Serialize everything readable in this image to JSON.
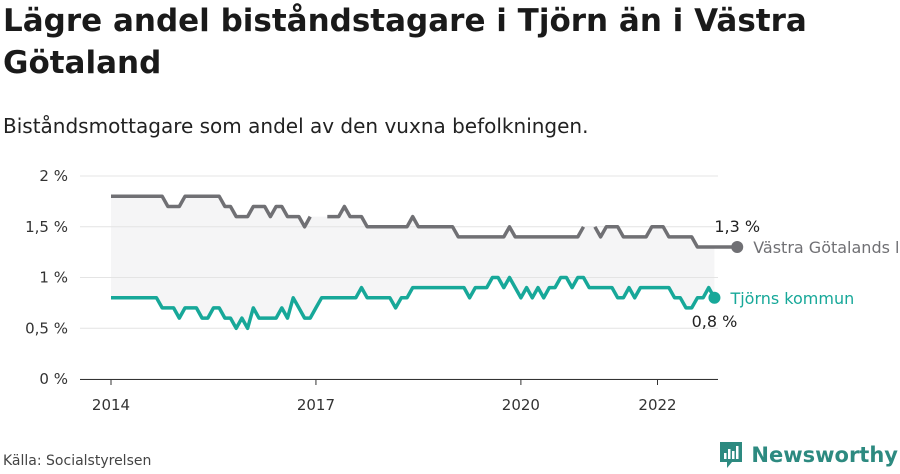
{
  "title": "Lägre andel biståndstagare i Tjörn än i Västra Götaland",
  "subtitle": "Biståndsmottagare som andel av den vuxna befolkningen.",
  "source": "Källa: Socialstyrelsen",
  "brand": "Newsworthy",
  "colors": {
    "vgr": "#707074",
    "tjorn": "#17a899",
    "band": "#f5f5f6"
  },
  "chart_data": {
    "type": "line",
    "ylim": [
      0,
      2
    ],
    "yticks": [
      0,
      0.5,
      1,
      1.5,
      2
    ],
    "ytick_labels": [
      "0 %",
      "0,5 %",
      "1 %",
      "1,5 %",
      "2 %"
    ],
    "xlim": [
      2014.0,
      2022.417
    ],
    "xticks": [
      2014,
      2017,
      2020,
      2022
    ],
    "xtick_labels": [
      "2014",
      "2017",
      "2020",
      "2022"
    ],
    "series": [
      {
        "name": "Västra Götalands län",
        "end_label": "1,3 %",
        "x_start": "2014-01",
        "values": [
          1.8,
          1.8,
          1.8,
          1.8,
          1.8,
          1.8,
          1.8,
          1.8,
          1.8,
          1.8,
          1.7,
          1.7,
          1.7,
          1.8,
          1.8,
          1.8,
          1.8,
          1.8,
          1.8,
          1.8,
          1.7,
          1.7,
          1.6,
          1.6,
          1.6,
          1.7,
          1.7,
          1.7,
          1.6,
          1.7,
          1.7,
          1.6,
          1.6,
          1.6,
          1.5,
          1.6,
          null,
          null,
          1.6,
          1.6,
          1.6,
          1.7,
          1.6,
          1.6,
          1.6,
          1.5,
          1.5,
          1.5,
          1.5,
          1.5,
          1.5,
          1.5,
          1.5,
          1.6,
          1.5,
          1.5,
          1.5,
          1.5,
          1.5,
          1.5,
          1.5,
          1.4,
          1.4,
          1.4,
          1.4,
          1.4,
          1.4,
          1.4,
          1.4,
          1.4,
          1.5,
          1.4,
          1.4,
          1.4,
          1.4,
          1.4,
          1.4,
          1.4,
          1.4,
          1.4,
          1.4,
          1.4,
          1.4,
          1.5,
          null,
          1.5,
          1.4,
          1.5,
          1.5,
          1.5,
          1.4,
          1.4,
          1.4,
          1.4,
          1.4,
          1.5,
          1.5,
          1.5,
          1.4,
          1.4,
          1.4,
          1.4,
          1.4,
          1.3,
          1.3,
          1.3,
          1.3,
          1.3,
          1.3,
          1.3,
          1.3
        ]
      },
      {
        "name": "Tjörns kommun",
        "end_label": "0,8 %",
        "x_start": "2014-01",
        "values": [
          0.8,
          0.8,
          0.8,
          0.8,
          0.8,
          0.8,
          0.8,
          0.8,
          0.8,
          0.7,
          0.7,
          0.7,
          0.6,
          0.7,
          0.7,
          0.7,
          0.6,
          0.6,
          0.7,
          0.7,
          0.6,
          0.6,
          0.5,
          0.6,
          0.5,
          0.7,
          0.6,
          0.6,
          0.6,
          0.6,
          0.7,
          0.6,
          0.8,
          0.7,
          0.6,
          0.6,
          0.7,
          0.8,
          0.8,
          0.8,
          0.8,
          0.8,
          0.8,
          0.8,
          0.9,
          0.8,
          0.8,
          0.8,
          0.8,
          0.8,
          0.7,
          0.8,
          0.8,
          0.9,
          0.9,
          0.9,
          0.9,
          0.9,
          0.9,
          0.9,
          0.9,
          0.9,
          0.9,
          0.8,
          0.9,
          0.9,
          0.9,
          1.0,
          1.0,
          0.9,
          1.0,
          0.9,
          0.8,
          0.9,
          0.8,
          0.9,
          0.8,
          0.9,
          0.9,
          1.0,
          1.0,
          0.9,
          1.0,
          1.0,
          0.9,
          0.9,
          0.9,
          0.9,
          0.9,
          0.8,
          0.8,
          0.9,
          0.8,
          0.9,
          0.9,
          0.9,
          0.9,
          0.9,
          0.9,
          0.8,
          0.8,
          0.7,
          0.7,
          0.8,
          0.8,
          0.9,
          0.8
        ]
      }
    ]
  }
}
